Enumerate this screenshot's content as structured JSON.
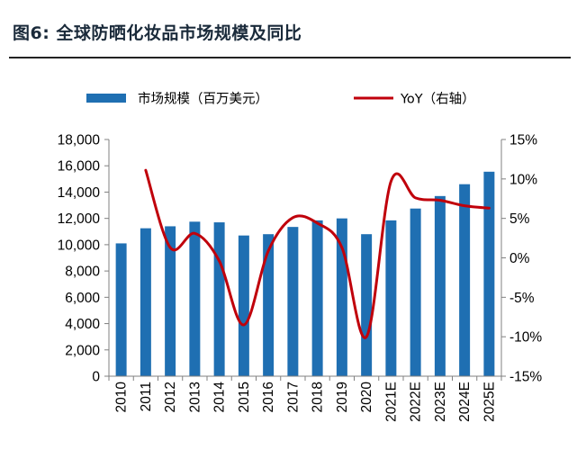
{
  "figure": {
    "title": "图6:  全球防晒化妆品市场规模及同比"
  },
  "chart_data": {
    "type": "bar",
    "categories": [
      "2010",
      "2011",
      "2012",
      "2013",
      "2014",
      "2015",
      "2016",
      "2017",
      "2018",
      "2019",
      "2020",
      "2021E",
      "2022E",
      "2023E",
      "2024E",
      "2025E"
    ],
    "series": [
      {
        "name": "市场规模（百万美元）",
        "type": "bar",
        "axis": "left",
        "color": "#1f6fb2",
        "values": [
          10100,
          11250,
          11400,
          11750,
          11700,
          10700,
          10800,
          11350,
          11850,
          12000,
          10800,
          11850,
          12750,
          13700,
          14600,
          15550
        ]
      },
      {
        "name": "YoY（右轴）",
        "type": "line",
        "axis": "right",
        "color": "#c0000b",
        "values": [
          null,
          11.1,
          1.3,
          3.1,
          -0.4,
          -8.5,
          0.9,
          5.1,
          4.4,
          1.3,
          -10.0,
          9.7,
          7.6,
          7.3,
          6.6,
          6.3
        ]
      }
    ],
    "left_axis": {
      "min": 0,
      "max": 18000,
      "step": 2000,
      "ticks": [
        "0",
        "2,000",
        "4,000",
        "6,000",
        "8,000",
        "10,000",
        "12,000",
        "14,000",
        "16,000",
        "18,000"
      ]
    },
    "right_axis": {
      "min": -15,
      "max": 15,
      "step": 5,
      "ticks": [
        "-15%",
        "-10%",
        "-5%",
        "0%",
        "5%",
        "10%",
        "15%"
      ]
    },
    "legend_position": "top",
    "grid": false
  }
}
